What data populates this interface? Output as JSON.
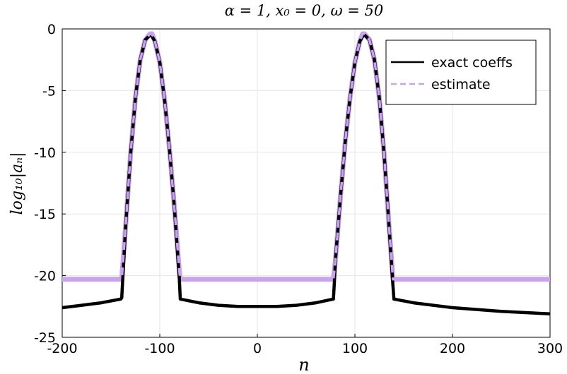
{
  "chart_data": {
    "type": "line",
    "title": "α = 1, x₀ = 0, ω = 50",
    "xlabel": "n",
    "ylabel": "log₁₀|aₙ|",
    "xlim": [
      -200,
      300
    ],
    "ylim": [
      -25,
      0
    ],
    "x_ticks": [
      -200,
      -100,
      0,
      100,
      200,
      300
    ],
    "x_tick_labels": [
      "-200",
      "-100",
      "0",
      "100",
      "200",
      "300"
    ],
    "y_ticks": [
      0,
      -5,
      -10,
      -15,
      -20,
      -25
    ],
    "y_tick_labels": [
      "0",
      "-5",
      "-10",
      "-15",
      "-20",
      "-25"
    ],
    "grid": true,
    "legend_position": "top-right",
    "colors": {
      "exact": "#000000",
      "estimate": "#c9a4ec",
      "grid": "#e6e6e6"
    },
    "series": [
      {
        "name": "exact coeffs",
        "style": "solid",
        "x": [
          -200,
          -180,
          -160,
          -140,
          -139,
          -135,
          -130,
          -125,
          -120,
          -115,
          -110,
          -108,
          -105,
          -100,
          -95,
          -90,
          -85,
          -80,
          -79,
          -60,
          -40,
          -20,
          0,
          20,
          40,
          60,
          78,
          79,
          80,
          85,
          90,
          95,
          100,
          105,
          108,
          110,
          115,
          120,
          125,
          130,
          135,
          139,
          140,
          160,
          200,
          250,
          300
        ],
        "y": [
          -22.6,
          -22.4,
          -22.2,
          -21.9,
          -21.8,
          -16.0,
          -10.2,
          -5.6,
          -2.5,
          -0.9,
          -0.5,
          -0.6,
          -1.0,
          -2.7,
          -5.8,
          -9.8,
          -14.5,
          -20.2,
          -21.9,
          -22.2,
          -22.4,
          -22.5,
          -22.5,
          -22.5,
          -22.4,
          -22.2,
          -21.9,
          -20.5,
          -18.8,
          -13.8,
          -9.2,
          -5.6,
          -2.7,
          -1.0,
          -0.6,
          -0.5,
          -0.9,
          -2.5,
          -5.6,
          -10.2,
          -16.0,
          -20.8,
          -21.9,
          -22.2,
          -22.6,
          -22.9,
          -23.1
        ]
      },
      {
        "name": "estimate",
        "style": "dashed",
        "x": [
          -200,
          -139,
          -135,
          -130,
          -125,
          -120,
          -115,
          -110,
          -108,
          -105,
          -100,
          -95,
          -90,
          -85,
          -80,
          -79,
          78,
          80,
          85,
          90,
          95,
          100,
          105,
          108,
          110,
          115,
          120,
          125,
          130,
          135,
          139,
          300
        ],
        "y": [
          -20.3,
          -20.3,
          -16.0,
          -10.2,
          -5.6,
          -2.5,
          -0.9,
          -0.4,
          -0.4,
          -1.0,
          -2.7,
          -5.8,
          -9.8,
          -14.5,
          -19.6,
          -20.3,
          -20.3,
          -18.8,
          -13.8,
          -9.2,
          -5.6,
          -2.7,
          -1.0,
          -0.4,
          -0.4,
          -0.9,
          -2.5,
          -5.6,
          -10.2,
          -16.0,
          -20.3,
          -20.3
        ]
      }
    ]
  }
}
